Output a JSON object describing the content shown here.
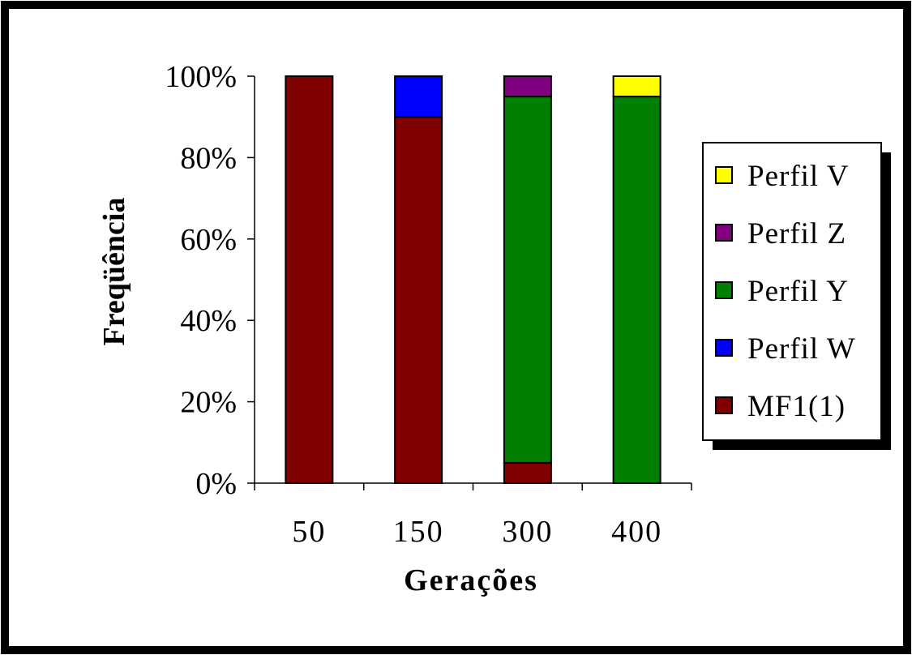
{
  "chart_data": {
    "type": "bar",
    "stacked": true,
    "percent_stacked": true,
    "categories": [
      "50",
      "150",
      "300",
      "400"
    ],
    "series": [
      {
        "name": "MF1(1)",
        "color": "#800000",
        "values": [
          100,
          90,
          5,
          0
        ]
      },
      {
        "name": "Perfil W",
        "color": "#0000FF",
        "values": [
          0,
          10,
          0,
          0
        ]
      },
      {
        "name": "Perfil Y",
        "color": "#008000",
        "values": [
          0,
          0,
          90,
          95
        ]
      },
      {
        "name": "Perfil Z",
        "color": "#800080",
        "values": [
          0,
          0,
          5,
          0
        ]
      },
      {
        "name": "Perfil V",
        "color": "#FFFF00",
        "values": [
          0,
          0,
          0,
          5
        ]
      }
    ],
    "xlabel": "Gerações",
    "ylabel": "Freqüência",
    "ylim": [
      0,
      100
    ],
    "yticks": [
      "0%",
      "20%",
      "40%",
      "60%",
      "80%",
      "100%"
    ],
    "legend_order": [
      "Perfil V",
      "Perfil Z",
      "Perfil Y",
      "Perfil W",
      "MF1(1)"
    ],
    "legend_position": "right",
    "grid": false
  }
}
